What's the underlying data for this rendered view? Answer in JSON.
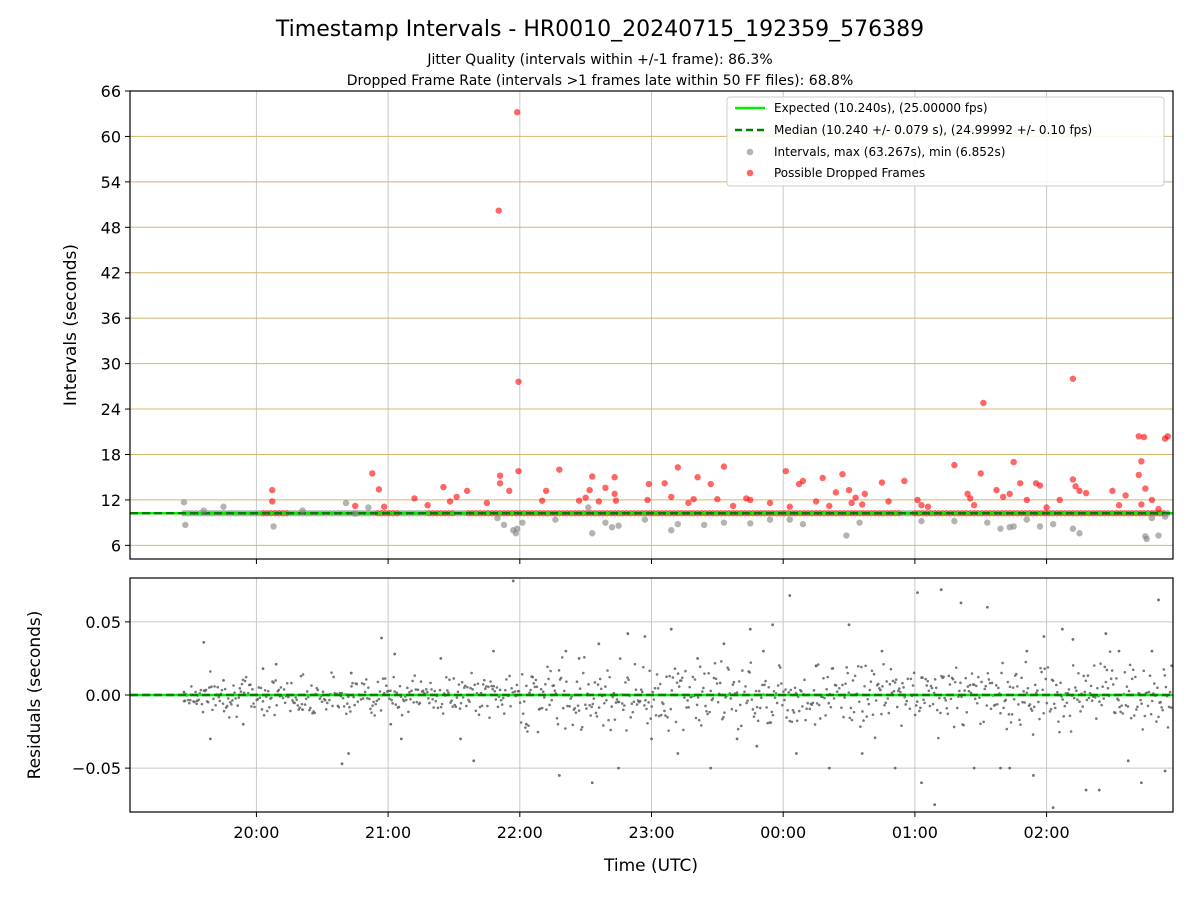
{
  "title": "Timestamp Intervals - HR0010_20240715_192359_576389",
  "subtitle1": "Jitter Quality (intervals within +/-1 frame): 86.3%",
  "subtitle2": "Dropped Frame Rate (intervals >1 frames late within 50 FF files): 68.8%",
  "colors": {
    "expected": "#00ee00",
    "median": "#008000",
    "intervals": "#808080",
    "dropped": "#ff0000",
    "hgrid_top": "#d4b86a",
    "vgrid": "#c8c8c8"
  },
  "chart_data": [
    {
      "type": "scatter",
      "title": "Timestamp Intervals - HR0010_20240715_192359_576389",
      "xlabel": "",
      "ylabel": "Intervals (seconds)",
      "x_unit": "hours since 00:00 UTC of 2024-07-15 (tick labels 20:00 ... 02:00)",
      "xlim": [
        19.04,
        26.96
      ],
      "ylim": [
        4.2,
        66
      ],
      "y_ticks": [
        6,
        12,
        18,
        24,
        30,
        36,
        42,
        48,
        54,
        60,
        66
      ],
      "x_ticks": [
        20,
        21,
        22,
        23,
        24,
        25,
        26
      ],
      "x_tick_labels": [
        "20:00",
        "21:00",
        "22:00",
        "23:00",
        "00:00",
        "01:00",
        "02:00"
      ],
      "grid": true,
      "legend": {
        "position": "top-right",
        "entries": [
          "Expected (10.240s), (25.00000 fps)",
          "Median (10.240 +/- 0.079 s), (24.99992 +/- 0.10 fps)",
          "Intervals, max (63.267s), min (6.852s)",
          "Possible Dropped Frames"
        ]
      },
      "series": [
        {
          "name": "Expected (10.240s), (25.00000 fps)",
          "kind": "hline",
          "y": 10.24
        },
        {
          "name": "Median (10.240 +/- 0.079 s), (24.99992 +/- 0.10 fps)",
          "kind": "hline-dashed",
          "y": 10.24
        },
        {
          "name": "Intervals, max (63.267s), min (6.852s)",
          "kind": "scatter",
          "x": [
            19.45,
            19.46,
            19.6,
            19.75,
            20.13,
            20.35,
            20.68,
            20.75,
            20.85,
            21.95,
            21.97,
            21.98,
            22.02,
            21.83,
            21.88,
            22.27,
            22.52,
            22.55,
            22.65,
            22.7,
            22.75,
            22.95,
            23.15,
            23.2,
            23.4,
            23.55,
            23.75,
            23.9,
            24.05,
            24.15,
            24.48,
            24.58,
            25.05,
            25.3,
            25.55,
            25.65,
            25.72,
            25.75,
            25.85,
            25.95,
            26.05,
            26.2,
            26.25,
            26.75,
            26.76,
            26.8,
            26.85,
            26.9
          ],
          "y": [
            11.7,
            8.7,
            10.6,
            11.1,
            8.5,
            10.6,
            11.6,
            10.2,
            11.0,
            8.0,
            7.6,
            8.2,
            9.0,
            9.6,
            8.7,
            9.4,
            11.0,
            7.6,
            9.0,
            8.4,
            8.6,
            9.4,
            8.0,
            8.8,
            8.7,
            9.0,
            8.9,
            9.4,
            9.4,
            8.8,
            7.3,
            9.0,
            9.2,
            9.2,
            9.0,
            8.2,
            8.4,
            8.5,
            9.4,
            8.5,
            8.8,
            8.2,
            7.6,
            7.2,
            6.85,
            9.6,
            7.3,
            9.8
          ]
        },
        {
          "name": "Possible Dropped Frames",
          "kind": "scatter",
          "x": [
            21.98,
            21.84,
            21.99,
            25.52,
            26.2,
            26.7,
            26.72,
            26.74,
            26.92,
            26.9,
            20.12,
            20.12,
            20.75,
            20.88,
            20.93,
            20.97,
            21.2,
            21.3,
            21.42,
            21.47,
            21.52,
            21.6,
            21.75,
            21.85,
            21.85,
            21.92,
            21.99,
            22.17,
            22.2,
            22.3,
            22.45,
            22.5,
            22.53,
            22.55,
            22.6,
            22.65,
            22.72,
            22.72,
            22.73,
            22.98,
            22.97,
            23.1,
            23.15,
            23.2,
            23.28,
            23.32,
            23.35,
            23.45,
            23.5,
            23.55,
            23.62,
            23.72,
            23.75,
            23.9,
            24.02,
            24.05,
            24.12,
            24.15,
            24.25,
            24.3,
            24.35,
            24.4,
            24.45,
            24.5,
            24.52,
            24.55,
            24.6,
            24.62,
            24.75,
            24.8,
            24.92,
            25.02,
            25.05,
            25.1,
            25.3,
            25.4,
            25.42,
            25.45,
            25.5,
            25.62,
            25.67,
            25.72,
            25.75,
            25.8,
            25.85,
            25.92,
            25.95,
            26.0,
            26.1,
            26.2,
            26.22,
            26.25,
            26.3,
            26.5,
            26.55,
            26.6,
            26.7,
            26.72,
            26.75,
            26.8,
            26.85
          ],
          "y": [
            63.2,
            50.2,
            27.6,
            24.8,
            28.0,
            20.4,
            17.1,
            20.3,
            20.4,
            20.1,
            13.3,
            11.8,
            11.2,
            15.5,
            13.4,
            11.1,
            12.2,
            11.3,
            13.7,
            11.8,
            12.4,
            13.2,
            11.6,
            15.2,
            14.2,
            13.2,
            15.8,
            11.9,
            13.2,
            16.0,
            11.9,
            12.3,
            13.3,
            15.1,
            11.8,
            13.6,
            15.0,
            12.8,
            11.9,
            14.1,
            12.0,
            14.2,
            12.4,
            16.3,
            11.6,
            12.1,
            15.0,
            14.1,
            12.1,
            16.4,
            11.2,
            12.2,
            12.0,
            11.6,
            15.8,
            11.1,
            14.1,
            14.5,
            11.8,
            14.9,
            11.2,
            13.0,
            15.4,
            13.3,
            11.6,
            12.3,
            11.4,
            12.8,
            14.3,
            11.8,
            14.5,
            12.0,
            11.3,
            11.1,
            16.6,
            12.8,
            12.2,
            11.3,
            15.5,
            13.3,
            12.4,
            12.8,
            17.0,
            14.2,
            12.0,
            14.2,
            13.9,
            11.0,
            12.0,
            14.7,
            13.8,
            13.2,
            12.9,
            13.2,
            11.3,
            12.6,
            15.3,
            11.4,
            13.5,
            12.0,
            10.8
          ]
        }
      ]
    },
    {
      "type": "scatter",
      "xlabel": "Time (UTC)",
      "ylabel": "Residuals (seconds)",
      "x_unit": "hours since 00:00 UTC of 2024-07-15 (tick labels 20:00 ... 02:00)",
      "xlim": [
        19.04,
        26.96
      ],
      "ylim": [
        -0.08,
        0.08
      ],
      "y_ticks": [
        -0.05,
        0.0,
        0.05
      ],
      "y_tick_labels": [
        "−0.05",
        "0.00",
        "0.05"
      ],
      "x_ticks": [
        20,
        21,
        22,
        23,
        24,
        25,
        26
      ],
      "x_tick_labels": [
        "20:00",
        "21:00",
        "22:00",
        "23:00",
        "00:00",
        "01:00",
        "02:00"
      ],
      "grid": true,
      "series": [
        {
          "name": "",
          "kind": "hline-dashed",
          "y": 0.0
        },
        {
          "name": "",
          "kind": "scatter",
          "x": [
            19.45,
            19.55,
            19.6,
            19.65,
            19.75,
            19.9,
            20.05,
            20.15,
            20.35,
            20.65,
            20.7,
            20.72,
            20.95,
            21.02,
            21.05,
            21.1,
            21.4,
            21.55,
            21.65,
            21.8,
            21.95,
            22.05,
            22.3,
            22.35,
            22.45,
            22.55,
            22.6,
            22.75,
            22.82,
            22.95,
            23.0,
            23.15,
            23.2,
            23.35,
            23.45,
            23.55,
            23.65,
            23.75,
            23.8,
            23.85,
            23.92,
            24.05,
            24.1,
            24.25,
            24.35,
            24.5,
            24.6,
            24.75,
            24.85,
            25.02,
            25.05,
            25.15,
            25.2,
            25.35,
            25.45,
            25.55,
            25.65,
            25.72,
            25.85,
            25.9,
            25.98,
            26.05,
            26.12,
            26.2,
            26.3,
            26.4,
            26.45,
            26.55,
            26.62,
            26.72,
            26.8,
            26.85,
            26.9,
            26.95
          ],
          "y": [
            0.002,
            -0.004,
            0.036,
            -0.03,
            0.01,
            -0.02,
            0.018,
            0.021,
            -0.01,
            -0.047,
            -0.04,
            0.015,
            0.039,
            -0.02,
            0.028,
            -0.03,
            0.025,
            -0.03,
            -0.045,
            0.03,
            0.078,
            -0.02,
            -0.055,
            0.03,
            0.025,
            -0.06,
            0.035,
            -0.05,
            0.042,
            0.04,
            -0.03,
            0.045,
            -0.04,
            0.025,
            -0.05,
            0.035,
            -0.03,
            0.045,
            -0.035,
            0.03,
            0.048,
            0.068,
            -0.04,
            0.02,
            -0.05,
            0.048,
            -0.04,
            0.03,
            -0.05,
            0.07,
            -0.06,
            -0.075,
            0.072,
            0.063,
            -0.05,
            0.06,
            -0.05,
            -0.05,
            0.03,
            -0.055,
            0.04,
            -0.077,
            0.045,
            0.038,
            -0.065,
            -0.065,
            0.042,
            0.03,
            -0.045,
            -0.06,
            0.03,
            0.065,
            -0.052,
            0.02
          ]
        }
      ]
    }
  ]
}
